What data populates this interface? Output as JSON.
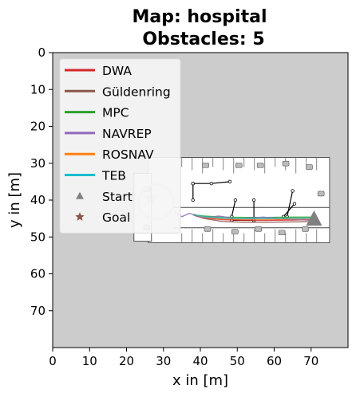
{
  "chart_data": {
    "type": "line",
    "title": [
      "Map: hospital",
      "Obstacles: 5"
    ],
    "xlabel": "x in [m]",
    "ylabel": "y in [m]",
    "xlim": [
      0,
      80
    ],
    "ylim": [
      80,
      0
    ],
    "y_inverted": true,
    "xticks": [
      0,
      10,
      20,
      30,
      40,
      50,
      60,
      70
    ],
    "yticks": [
      0,
      10,
      20,
      30,
      40,
      50,
      60,
      70
    ],
    "background_color": "#cccccc",
    "legend_placement": "upper left",
    "series": [
      {
        "name": "DWA",
        "color": "#d62728",
        "points": [
          [
            71,
            45.3
          ],
          [
            65,
            45.4
          ],
          [
            58,
            45.5
          ],
          [
            52,
            45.5
          ],
          [
            46,
            45.3
          ],
          [
            41,
            44.8
          ],
          [
            38.5,
            44.2
          ]
        ]
      },
      {
        "name": "Güldenring",
        "color": "#8c564b",
        "points": [
          [
            71,
            45.8
          ],
          [
            65,
            45.9
          ],
          [
            58,
            46.0
          ],
          [
            52,
            46.0
          ],
          [
            46,
            45.8
          ],
          [
            41,
            45.0
          ],
          [
            38,
            44.0
          ]
        ]
      },
      {
        "name": "MPC",
        "color": "#2ca02c",
        "points": [
          [
            71,
            44.6
          ],
          [
            65,
            44.6
          ],
          [
            58,
            44.7
          ],
          [
            52,
            44.7
          ],
          [
            46,
            44.6
          ],
          [
            41,
            44.3
          ],
          [
            38,
            44.0
          ]
        ]
      },
      {
        "name": "NAVREP",
        "color": "#9467bd",
        "points": [
          [
            71,
            45.5
          ],
          [
            64,
            45.2
          ],
          [
            57,
            44.6
          ],
          [
            50,
            45.1
          ],
          [
            45,
            44.3
          ],
          [
            41,
            44.8
          ],
          [
            37,
            43.6
          ],
          [
            35,
            44.5
          ],
          [
            33,
            43.2
          ]
        ]
      },
      {
        "name": "ROSNAV",
        "color": "#ff7f0e",
        "points": [
          [
            71,
            45.1
          ],
          [
            65,
            45.1
          ],
          [
            58,
            45.2
          ],
          [
            52,
            45.2
          ],
          [
            46,
            45.1
          ],
          [
            41,
            44.6
          ],
          [
            38,
            43.8
          ]
        ]
      },
      {
        "name": "TEB",
        "color": "#17becf",
        "points": [
          [
            71,
            44.9
          ],
          [
            65,
            44.9
          ],
          [
            58,
            45.0
          ],
          [
            52,
            45.0
          ],
          [
            46,
            44.9
          ],
          [
            41,
            44.5
          ],
          [
            38,
            43.9
          ]
        ]
      }
    ],
    "markers": [
      {
        "name": "Start",
        "symbol": "triangle",
        "color": "#808080",
        "x": 70.8,
        "y": 45.2
      },
      {
        "name": "Goal",
        "symbol": "star",
        "color": "#8c564b",
        "x": 26.5,
        "y": 39.5
      }
    ],
    "legend": [
      {
        "label": "DWA",
        "kind": "line",
        "color": "#d62728"
      },
      {
        "label": "Güldenring",
        "kind": "line",
        "color": "#8c564b"
      },
      {
        "label": "MPC",
        "kind": "line",
        "color": "#2ca02c"
      },
      {
        "label": "NAVREP",
        "kind": "line",
        "color": "#9467bd"
      },
      {
        "label": "ROSNAV",
        "kind": "line",
        "color": "#ff7f0e"
      },
      {
        "label": "TEB",
        "kind": "line",
        "color": "#17becf"
      },
      {
        "label": "Start",
        "kind": "triangle",
        "color": "#808080"
      },
      {
        "label": "Goal",
        "kind": "star",
        "color": "#8c564b"
      }
    ],
    "map": {
      "name": "hospital",
      "extent": {
        "x": [
          22,
          75
        ],
        "y": [
          28,
          52
        ]
      },
      "obstacle_paths": [
        [
          [
            38,
            35.5
          ],
          [
            43,
            35.5
          ],
          [
            48,
            35
          ]
        ],
        [
          [
            38,
            35.5
          ],
          [
            38,
            40
          ]
        ],
        [
          [
            48.5,
            44.5
          ],
          [
            49.5,
            40
          ]
        ],
        [
          [
            48.5,
            45.5
          ],
          [
            54.5,
            45.5
          ]
        ],
        [
          [
            54.5,
            45.5
          ],
          [
            54.5,
            40
          ]
        ],
        [
          [
            62.5,
            44.5
          ],
          [
            65.5,
            41
          ]
        ],
        [
          [
            63.5,
            44.5
          ],
          [
            65,
            37.5
          ]
        ]
      ]
    }
  }
}
